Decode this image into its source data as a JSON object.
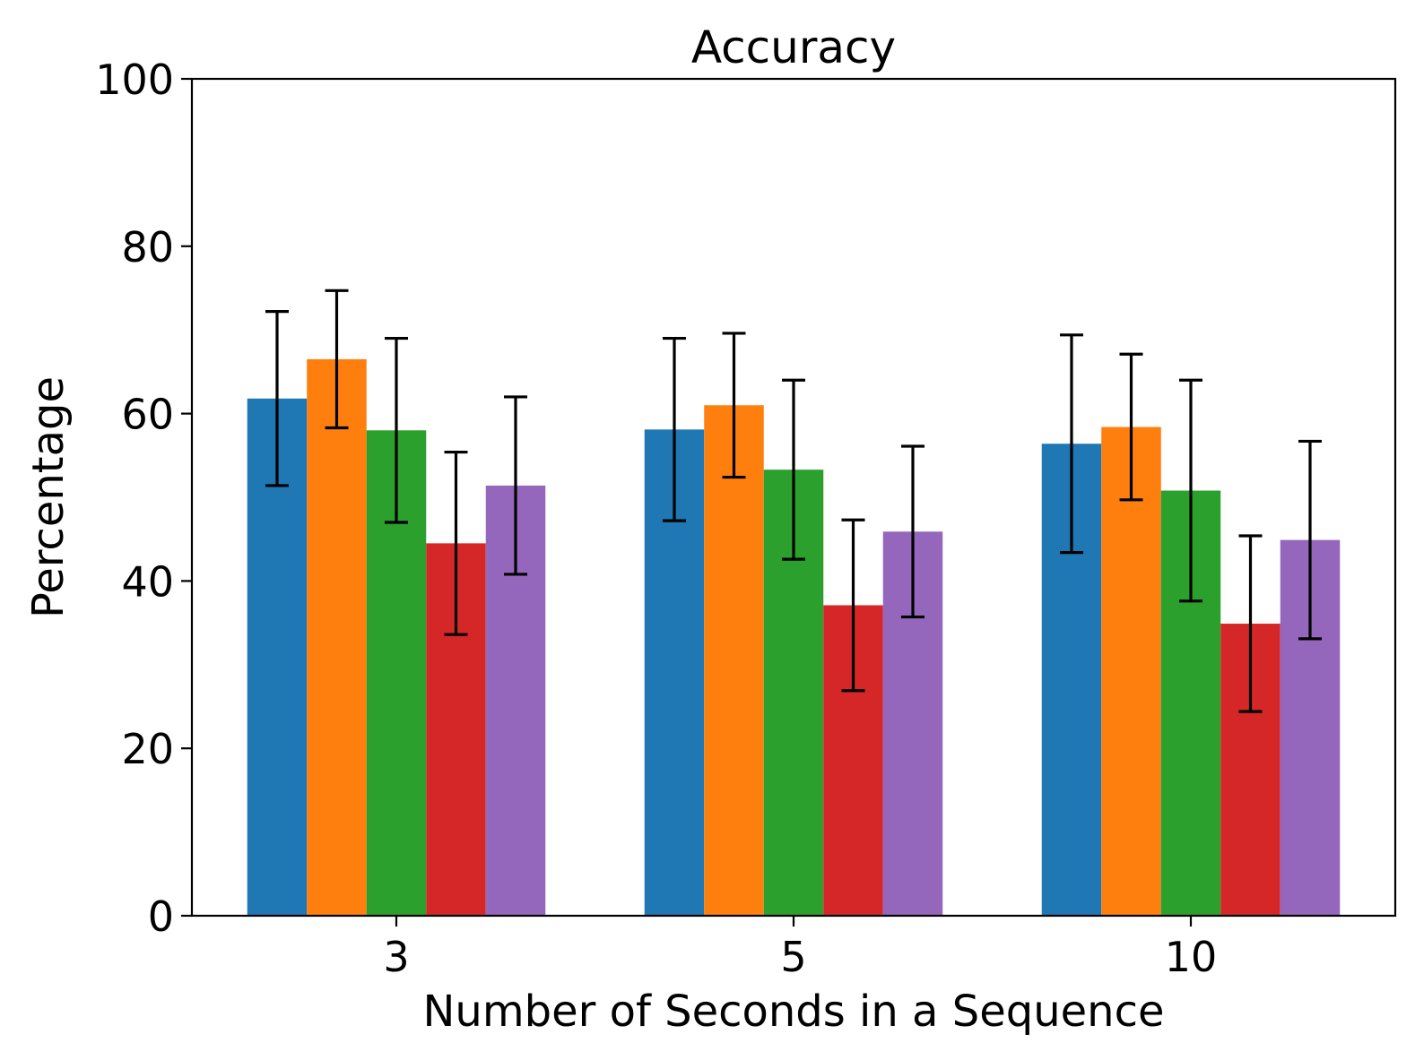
{
  "chart_data": {
    "type": "bar",
    "title": "Accuracy",
    "xlabel": "Number of Seconds in a Sequence",
    "ylabel": "Percentage",
    "ylim": [
      0,
      100
    ],
    "yticks": [
      0,
      20,
      40,
      60,
      80,
      100
    ],
    "categories": [
      "3",
      "5",
      "10"
    ],
    "grid": false,
    "legend": "none",
    "series": [
      {
        "color": "#1f77b4",
        "values": [
          61.8,
          58.1,
          56.4
        ],
        "errors": [
          10.4,
          10.9,
          13.0
        ]
      },
      {
        "color": "#ff7f0e",
        "values": [
          66.5,
          61.0,
          58.4
        ],
        "errors": [
          8.2,
          8.6,
          8.7
        ]
      },
      {
        "color": "#2ca02c",
        "values": [
          58.0,
          53.3,
          50.8
        ],
        "errors": [
          11.0,
          10.7,
          13.2
        ]
      },
      {
        "color": "#d62728",
        "values": [
          44.5,
          37.1,
          34.9
        ],
        "errors": [
          10.9,
          10.2,
          10.5
        ]
      },
      {
        "color": "#9467bd",
        "values": [
          51.4,
          45.9,
          44.9
        ],
        "errors": [
          10.6,
          10.2,
          11.8
        ]
      }
    ]
  }
}
